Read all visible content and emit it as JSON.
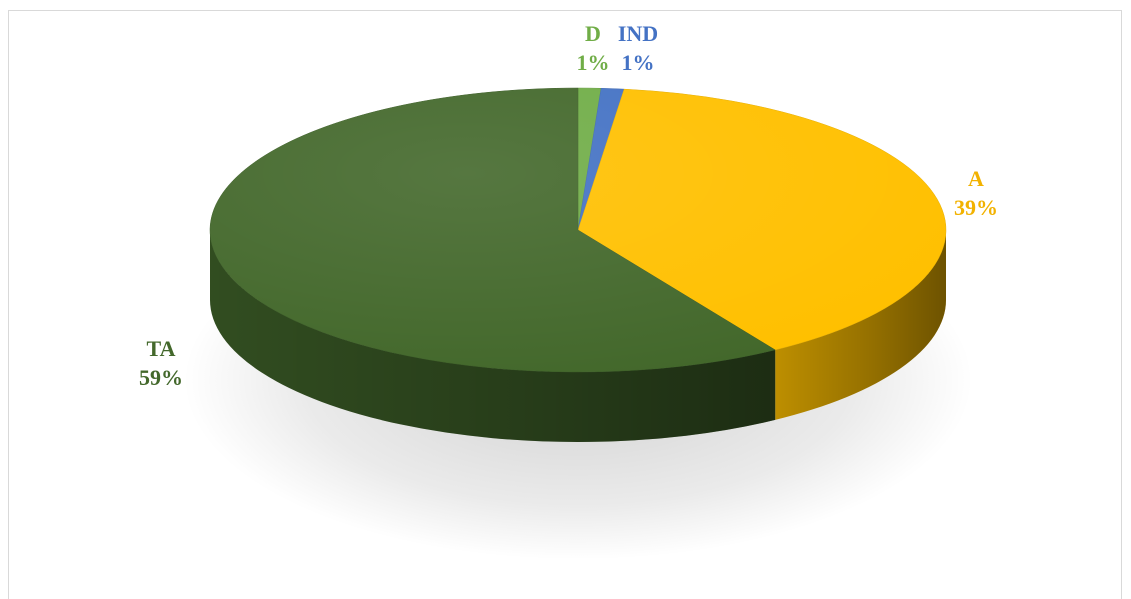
{
  "chart_data": {
    "type": "pie",
    "style": "3d",
    "slices": [
      {
        "label": "D",
        "value": 1,
        "display": "1%",
        "color": "#70ad47"
      },
      {
        "label": "IND",
        "value": 1,
        "display": "1%",
        "color": "#4472c4"
      },
      {
        "label": "A",
        "value": 39,
        "display": "39%",
        "color": "#ffc000"
      },
      {
        "label": "TA",
        "value": 59,
        "display": "59%",
        "color": "#43682b"
      }
    ],
    "label_colors": {
      "D": "#70ad47",
      "IND": "#4472c4",
      "A": "#f2b200",
      "TA": "#43682b"
    },
    "legend": "none"
  }
}
